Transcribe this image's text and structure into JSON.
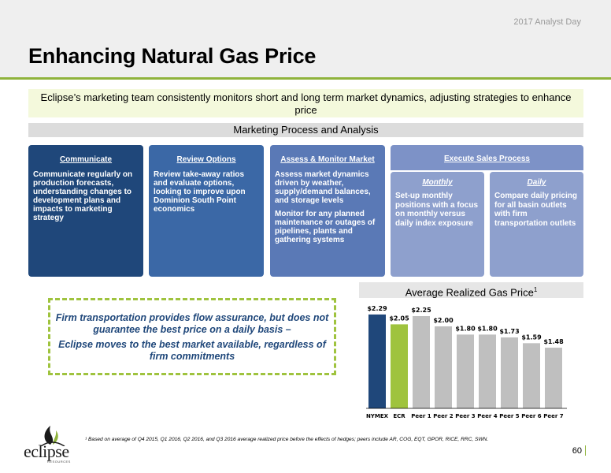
{
  "header": {
    "event": "2017 Analyst Day",
    "title": "Enhancing Natural Gas Price"
  },
  "lead": "Eclipse’s marketing team consistently monitors short and long term market dynamics, adjusting strategies to enhance price",
  "process": {
    "title": "Marketing Process and Analysis",
    "steps": [
      {
        "title": "Communicate",
        "body": [
          "Communicate regularly on production forecasts, understanding changes to development plans and impacts to marketing strategy"
        ]
      },
      {
        "title": "Review Options",
        "body": [
          "Review take-away ratios and evaluate options, looking to improve upon Dominion South Point economics"
        ]
      },
      {
        "title": "Assess & Monitor Market",
        "body": [
          "Assess market dynamics driven by weather, supply/demand balances, and storage levels",
          "Monitor for any planned maintenance or outages of pipelines, plants and gathering systems"
        ]
      },
      {
        "title": "Execute Sales Process",
        "subs": [
          {
            "title": "Monthly",
            "body": "Set-up monthly positions with a focus on monthly versus daily index exposure"
          },
          {
            "title": "Daily",
            "body": "Compare daily pricing for all basin outlets with firm transportation outlets"
          }
        ]
      }
    ]
  },
  "callout": {
    "line1": "Firm transportation provides flow assurance, but does not guarantee the best price on a daily basis –",
    "line2": "Eclipse moves to the best market available, regardless of firm commitments"
  },
  "chart_data": {
    "type": "bar",
    "title": "Average Realized Gas Price",
    "title_footnote_marker": "1",
    "categories": [
      "NYMEX",
      "ECR",
      "Peer 1",
      "Peer 2",
      "Peer 3",
      "Peer 4",
      "Peer 5",
      "Peer 6",
      "Peer 7"
    ],
    "values": [
      2.29,
      2.05,
      2.25,
      2.0,
      1.8,
      1.8,
      1.73,
      1.59,
      1.48
    ],
    "value_labels": [
      "$2.29",
      "$2.05",
      "$2.25",
      "$2.00",
      "$1.80",
      "$1.80",
      "$1.73",
      "$1.59",
      "$1.48"
    ],
    "colors": [
      "#1f477a",
      "#9fc33e",
      "#bfbfbf",
      "#bfbfbf",
      "#bfbfbf",
      "#bfbfbf",
      "#bfbfbf",
      "#bfbfbf",
      "#bfbfbf"
    ],
    "ylim": [
      0,
      2.5
    ],
    "grid": false,
    "legend": "none"
  },
  "footnote": "¹ Based on average of Q4 2015, Q1 2016, Q2 2016, and Q3 2016 average realized price before the effects of hedges; peers include AR, COG, EQT, GPOR, RICE, RRC, SWN.",
  "logo": {
    "word": "eclipse",
    "sub": "RESOURCES"
  },
  "page_number": "60"
}
